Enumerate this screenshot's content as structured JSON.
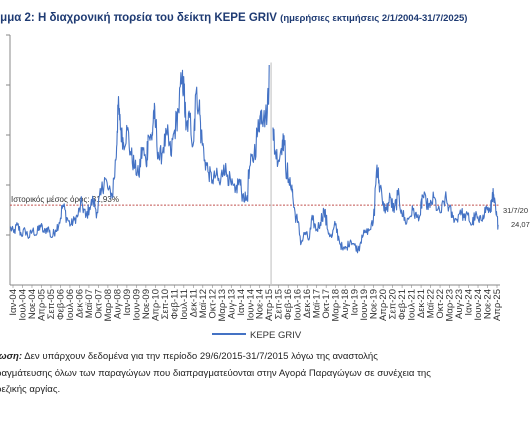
{
  "header": {
    "title": "ράμμα 2: Η διαχρονική πορεία του δείκτη KEPE GRIV",
    "subtitle": "(ημερήσιες εκτιμήσεις 2/1/2004-31/7/2025)"
  },
  "note": {
    "label": "ίωση:",
    "line1": " Δεν υπάρχουν δεδομένα για την περίοδο 29/6/2015-31/7/2015 λόγω της αναστολής",
    "line2": "ραγμάτευσης όλων των παραγώγων που διαπραγματεύονται στην Αγορά Παραγώγων σε συνέχεια της",
    "line3": "ρεζικής αργίας."
  },
  "chart_data": {
    "type": "line",
    "title": "",
    "xlabel": "",
    "ylabel": "",
    "x_range": [
      "2004-01",
      "2025-07"
    ],
    "ylim": [
      0,
      100
    ],
    "grid": false,
    "legend": {
      "position": "bottom",
      "entries": [
        "KEPE GRIV"
      ]
    },
    "colors": {
      "series": "#4472c4",
      "reference": "#c0504d"
    },
    "categories": [
      "Ιαν-04",
      "Ιουλ-04",
      "Νοε-04",
      "Απρ-05",
      "Σεπ-05",
      "Φεβ-06",
      "Ιουλ-06",
      "Δεκ-06",
      "Μαϊ-07",
      "Οκτ-07",
      "Μαρ-08",
      "Αυγ-08",
      "Ιαν-09",
      "Ιουν-09",
      "Νοε-09",
      "Απρ-10",
      "Σεπ-10",
      "Φεβ-11",
      "Ιουλ-11",
      "Δεκ-11",
      "Μαϊ-12",
      "Οκτ-12",
      "Μαρ-13",
      "Αυγ-13",
      "Ιαν-14",
      "Ιουν-14",
      "Νοε-14",
      "Απρ-15",
      "Σεπ-15",
      "Φεβ-16",
      "Ιουλ-16",
      "Δεκ-16",
      "Μαϊ-17",
      "Οκτ-17",
      "Μαρ-18",
      "Αυγ-18",
      "Ιαν-19",
      "Ιουν-19",
      "Νοε-19",
      "Απρ-20",
      "Σεπ-20",
      "Φεβ-21",
      "Ιουλ-21",
      "Δεκ-21",
      "Μαϊ-22",
      "Οκτ-22",
      "Μαρ-23",
      "Αυγ-23",
      "Ιαν-24",
      "Ιουν-24",
      "Νοε-24",
      "Απρ-25"
    ],
    "reference_line": {
      "label": "Ιστορικός μέσος όρος: 31,93%",
      "value": 31.93
    },
    "end_labels": [
      "31/7/20",
      "24,07"
    ],
    "series": [
      {
        "name": "KEPE GRIV",
        "points": [
          [
            "2004-01",
            23
          ],
          [
            "2004-03",
            21
          ],
          [
            "2004-05",
            24
          ],
          [
            "2004-07",
            20
          ],
          [
            "2004-09",
            22
          ],
          [
            "2004-11",
            19
          ],
          [
            "2005-01",
            22
          ],
          [
            "2005-03",
            20
          ],
          [
            "2005-05",
            24
          ],
          [
            "2005-07",
            21
          ],
          [
            "2005-09",
            23
          ],
          [
            "2005-11",
            19
          ],
          [
            "2006-01",
            22
          ],
          [
            "2006-03",
            25
          ],
          [
            "2006-05",
            32
          ],
          [
            "2006-07",
            27
          ],
          [
            "2006-09",
            24
          ],
          [
            "2006-11",
            26
          ],
          [
            "2007-01",
            28
          ],
          [
            "2007-03",
            33
          ],
          [
            "2007-05",
            27
          ],
          [
            "2007-07",
            31
          ],
          [
            "2007-09",
            34
          ],
          [
            "2007-11",
            29
          ],
          [
            "2008-01",
            36
          ],
          [
            "2008-03",
            43
          ],
          [
            "2008-05",
            38
          ],
          [
            "2008-07",
            36
          ],
          [
            "2008-09",
            50
          ],
          [
            "2008-10",
            72
          ],
          [
            "2008-11",
            66
          ],
          [
            "2008-12",
            60
          ],
          [
            "2009-01",
            57
          ],
          [
            "2009-03",
            62
          ],
          [
            "2009-05",
            52
          ],
          [
            "2009-07",
            47
          ],
          [
            "2009-09",
            44
          ],
          [
            "2009-11",
            55
          ],
          [
            "2010-01",
            48
          ],
          [
            "2010-02",
            60
          ],
          [
            "2010-04",
            58
          ],
          [
            "2010-05",
            70
          ],
          [
            "2010-06",
            63
          ],
          [
            "2010-08",
            50
          ],
          [
            "2010-10",
            55
          ],
          [
            "2010-12",
            60
          ],
          [
            "2011-02",
            52
          ],
          [
            "2011-04",
            62
          ],
          [
            "2011-06",
            70
          ],
          [
            "2011-08",
            82
          ],
          [
            "2011-09",
            78
          ],
          [
            "2011-10",
            62
          ],
          [
            "2011-12",
            67
          ],
          [
            "2012-02",
            57
          ],
          [
            "2012-03",
            76
          ],
          [
            "2012-05",
            72
          ],
          [
            "2012-06",
            60
          ],
          [
            "2012-08",
            50
          ],
          [
            "2012-10",
            45
          ],
          [
            "2012-12",
            42
          ],
          [
            "2013-02",
            44
          ],
          [
            "2013-04",
            40
          ],
          [
            "2013-06",
            48
          ],
          [
            "2013-08",
            44
          ],
          [
            "2013-10",
            40
          ],
          [
            "2013-12",
            37
          ],
          [
            "2014-02",
            42
          ],
          [
            "2014-04",
            36
          ],
          [
            "2014-06",
            34
          ],
          [
            "2014-08",
            48
          ],
          [
            "2014-10",
            52
          ],
          [
            "2014-12",
            62
          ],
          [
            "2015-01",
            66
          ],
          [
            "2015-02",
            70
          ],
          [
            "2015-03",
            66
          ],
          [
            "2015-05",
            69
          ],
          [
            "2015-06",
            88
          ],
          [
            "2015-08",
            63
          ],
          [
            "2015-09",
            54
          ],
          [
            "2015-11",
            50
          ],
          [
            "2016-01",
            58
          ],
          [
            "2016-02",
            56
          ],
          [
            "2016-04",
            41
          ],
          [
            "2016-06",
            40
          ],
          [
            "2016-07",
            31
          ],
          [
            "2016-09",
            25
          ],
          [
            "2016-11",
            17
          ],
          [
            "2017-01",
            21
          ],
          [
            "2017-03",
            18
          ],
          [
            "2017-05",
            26
          ],
          [
            "2017-07",
            22
          ],
          [
            "2017-09",
            25
          ],
          [
            "2017-11",
            30
          ],
          [
            "2018-01",
            22
          ],
          [
            "2018-03",
            19
          ],
          [
            "2018-05",
            24
          ],
          [
            "2018-07",
            18
          ],
          [
            "2018-09",
            14
          ],
          [
            "2018-11",
            15
          ],
          [
            "2019-01",
            18
          ],
          [
            "2019-03",
            16
          ],
          [
            "2019-05",
            14
          ],
          [
            "2019-07",
            20
          ],
          [
            "2019-09",
            21
          ],
          [
            "2019-11",
            22
          ],
          [
            "2020-01",
            25
          ],
          [
            "2020-03",
            48
          ],
          [
            "2020-04",
            42
          ],
          [
            "2020-06",
            32
          ],
          [
            "2020-08",
            30
          ],
          [
            "2020-10",
            35
          ],
          [
            "2020-12",
            29
          ],
          [
            "2021-02",
            36
          ],
          [
            "2021-04",
            30
          ],
          [
            "2021-06",
            25
          ],
          [
            "2021-08",
            27
          ],
          [
            "2021-10",
            30
          ],
          [
            "2021-12",
            27
          ],
          [
            "2022-02",
            28
          ],
          [
            "2022-03",
            36
          ],
          [
            "2022-05",
            33
          ],
          [
            "2022-07",
            31
          ],
          [
            "2022-09",
            35
          ],
          [
            "2022-11",
            30
          ],
          [
            "2023-01",
            29
          ],
          [
            "2023-03",
            35
          ],
          [
            "2023-05",
            31
          ],
          [
            "2023-07",
            27
          ],
          [
            "2023-09",
            26
          ],
          [
            "2023-11",
            30
          ],
          [
            "2024-01",
            27
          ],
          [
            "2024-03",
            28
          ],
          [
            "2024-05",
            24
          ],
          [
            "2024-07",
            28
          ],
          [
            "2024-09",
            25
          ],
          [
            "2024-11",
            28
          ],
          [
            "2025-01",
            31
          ],
          [
            "2025-03",
            29
          ],
          [
            "2025-04",
            37
          ],
          [
            "2025-05",
            33
          ],
          [
            "2025-06",
            28
          ],
          [
            "2025-07",
            24.07
          ]
        ]
      }
    ]
  }
}
